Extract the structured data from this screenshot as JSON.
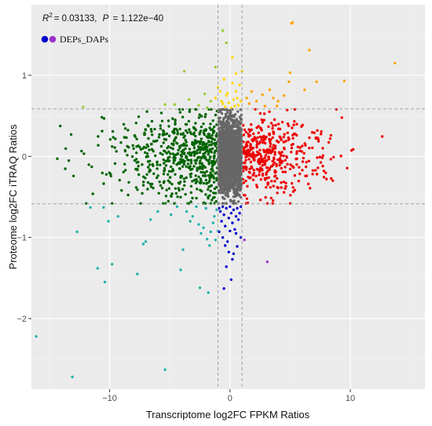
{
  "chart_data": {
    "type": "scatter",
    "title": "",
    "xlabel": "Transcriptome log2FC FPKM Ratios",
    "ylabel": "Proteome log2FC iTRAQ Ratios",
    "xlim": [
      -16.5,
      16.2
    ],
    "ylim": [
      -2.87,
      1.87
    ],
    "xticks": [
      -10,
      0,
      10
    ],
    "xtick_labels": [
      "−10",
      "0",
      "10"
    ],
    "yticks": [
      -2,
      -1,
      0,
      1
    ],
    "ytick_labels": [
      "−2",
      "−1",
      "0",
      "1"
    ],
    "vlines": [
      -1,
      1
    ],
    "hlines": [
      -0.585,
      0.585
    ],
    "grid": true,
    "background": "#ebebeb",
    "annotation": {
      "r2_symbol": "R",
      "r2_sup": "2",
      "r2_value": "= 0.03133,",
      "p_symbol": "P",
      "p_value": "= 1.122e−40"
    },
    "legend": {
      "label": "DEPs_DAPs",
      "colors": [
        "#0000cc",
        "#9933cc"
      ],
      "position": "top-left"
    },
    "colors": {
      "grey": "#666666",
      "green": "#006400",
      "red": "#ee0000",
      "gold": "#ffd700",
      "orange": "#ffa500",
      "blue": "#0000cc",
      "teal": "#20b2aa",
      "yellowgreen": "#9acd32",
      "purple": "#9933cc"
    },
    "series": [
      {
        "color": "gold",
        "points": [
          [
            0.2,
            1.22
          ],
          [
            0.5,
            1.02
          ],
          [
            1.0,
            1.05
          ],
          [
            -0.5,
            0.95
          ],
          [
            -1.0,
            0.85
          ],
          [
            -0.8,
            0.8
          ],
          [
            -1.2,
            0.72
          ],
          [
            -0.6,
            0.65
          ],
          [
            -0.3,
            0.75
          ],
          [
            0.3,
            0.7
          ],
          [
            0.6,
            0.72
          ],
          [
            0.9,
            0.68
          ],
          [
            0.4,
            0.62
          ],
          [
            -0.1,
            0.66
          ],
          [
            0.1,
            0.6
          ],
          [
            0.7,
            0.63
          ],
          [
            -0.4,
            0.61
          ],
          [
            0.2,
            0.9
          ],
          [
            -0.2,
            0.78
          ],
          [
            0.5,
            0.8
          ],
          [
            0.8,
            0.88
          ],
          [
            -0.7,
            0.68
          ]
        ]
      },
      {
        "color": "orange",
        "points": [
          [
            5.1,
            1.64
          ],
          [
            5.2,
            1.65
          ],
          [
            13.7,
            1.15
          ],
          [
            6.6,
            1.31
          ],
          [
            5.0,
            1.03
          ],
          [
            7.2,
            0.92
          ],
          [
            4.9,
            0.92
          ],
          [
            9.5,
            0.93
          ],
          [
            6.2,
            0.82
          ],
          [
            4.5,
            0.75
          ],
          [
            3.6,
            0.72
          ],
          [
            2.7,
            0.76
          ],
          [
            2.2,
            0.68
          ],
          [
            1.6,
            0.65
          ],
          [
            1.4,
            0.72
          ],
          [
            1.8,
            0.8
          ],
          [
            2.9,
            0.62
          ],
          [
            3.3,
            0.82
          ],
          [
            4.0,
            0.68
          ],
          [
            3.9,
            0.62
          ]
        ]
      },
      {
        "color": "yellowgreen",
        "points": [
          [
            -0.6,
            1.55
          ],
          [
            -0.3,
            1.4
          ],
          [
            -1.2,
            1.1
          ],
          [
            -2.1,
            0.77
          ],
          [
            -3.8,
            1.05
          ],
          [
            -3.4,
            0.7
          ],
          [
            -1.6,
            0.68
          ],
          [
            -12.2,
            0.61
          ],
          [
            -5.4,
            0.64
          ],
          [
            -4.6,
            0.64
          ],
          [
            -2.6,
            0.63
          ],
          [
            -1.9,
            0.6
          ]
        ]
      },
      {
        "color": "teal",
        "points": [
          [
            -16.1,
            -2.22
          ],
          [
            -13.1,
            -2.72
          ],
          [
            -5.4,
            -2.63
          ],
          [
            -1.8,
            -1.68
          ],
          [
            -2.5,
            -1.62
          ],
          [
            -4.1,
            -1.4
          ],
          [
            -12.7,
            -0.93
          ],
          [
            -11.0,
            -1.38
          ],
          [
            -10.4,
            -1.55
          ],
          [
            -9.8,
            -1.33
          ],
          [
            -7.7,
            -1.45
          ],
          [
            -7.0,
            -1.05
          ],
          [
            -7.2,
            -1.08
          ],
          [
            -3.9,
            -1.15
          ],
          [
            -10.1,
            -0.8
          ],
          [
            -11.6,
            -0.63
          ],
          [
            -10.5,
            -0.63
          ],
          [
            -9.3,
            -0.74
          ],
          [
            -6.6,
            -0.78
          ],
          [
            -6.0,
            -0.68
          ],
          [
            -4.9,
            -0.72
          ],
          [
            -3.1,
            -0.74
          ],
          [
            -3.3,
            -0.8
          ],
          [
            -2.6,
            -0.84
          ],
          [
            -2.2,
            -0.88
          ],
          [
            -1.6,
            -0.93
          ],
          [
            -1.9,
            -1.02
          ],
          [
            -1.3,
            -0.74
          ],
          [
            -1.1,
            -0.66
          ],
          [
            -2.0,
            -0.64
          ],
          [
            -1.4,
            -0.82
          ],
          [
            -1.0,
            -0.92
          ],
          [
            -2.4,
            -0.95
          ],
          [
            -1.7,
            -1.1
          ],
          [
            -1.2,
            -1.03
          ],
          [
            -3.6,
            -0.68
          ],
          [
            -2.8,
            -0.62
          ],
          [
            -4.4,
            -0.62
          ]
        ]
      },
      {
        "color": "blue",
        "points": [
          [
            -0.5,
            -1.63
          ],
          [
            0.1,
            -1.52
          ],
          [
            -0.3,
            -1.36
          ],
          [
            0.3,
            -1.2
          ],
          [
            0.6,
            -1.11
          ],
          [
            -0.2,
            -1.05
          ],
          [
            -0.6,
            -1.0
          ],
          [
            0.9,
            -1.0
          ],
          [
            -0.9,
            -0.93
          ],
          [
            0.0,
            -0.92
          ],
          [
            0.4,
            -0.9
          ],
          [
            -0.4,
            -0.86
          ],
          [
            0.2,
            -0.82
          ],
          [
            -0.7,
            -0.8
          ],
          [
            0.7,
            -0.78
          ],
          [
            -0.1,
            -0.76
          ],
          [
            0.5,
            -0.74
          ],
          [
            -0.5,
            -0.72
          ],
          [
            0.1,
            -0.7
          ],
          [
            0.8,
            -0.7
          ],
          [
            -0.8,
            -0.68
          ],
          [
            0.3,
            -0.66
          ],
          [
            -0.3,
            -0.64
          ],
          [
            0.6,
            -0.64
          ],
          [
            -0.6,
            -0.62
          ],
          [
            0.0,
            -0.62
          ],
          [
            0.9,
            -0.62
          ],
          [
            -0.9,
            -0.64
          ],
          [
            0.2,
            -1.27
          ],
          [
            -0.1,
            -1.18
          ],
          [
            0.5,
            -0.95
          ],
          [
            -0.4,
            -1.1
          ]
        ]
      },
      {
        "color": "purple",
        "points": [
          [
            3.1,
            -1.3
          ],
          [
            1.2,
            -1.03
          ]
        ]
      }
    ]
  }
}
